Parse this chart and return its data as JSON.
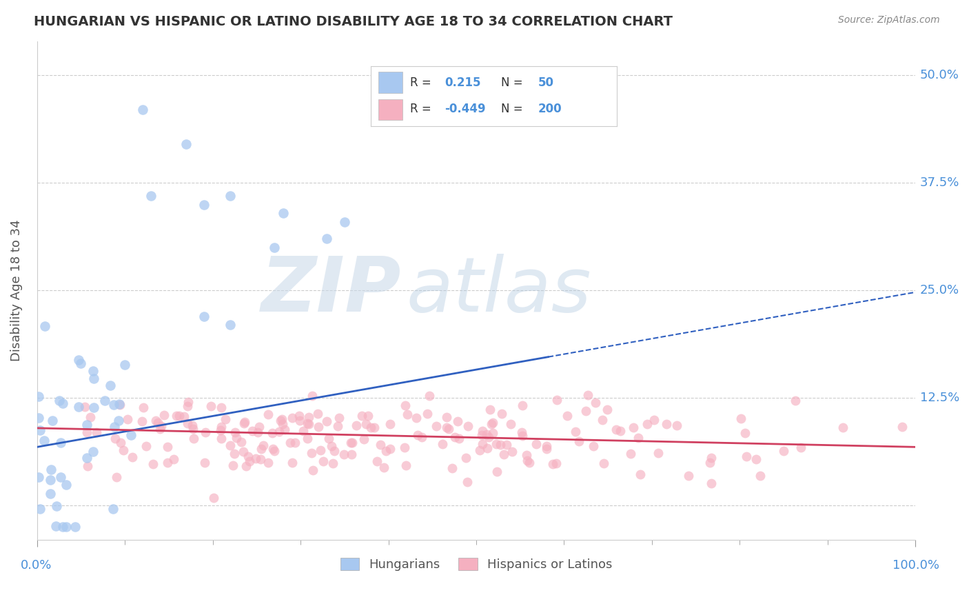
{
  "title": "HUNGARIAN VS HISPANIC OR LATINO DISABILITY AGE 18 TO 34 CORRELATION CHART",
  "source": "Source: ZipAtlas.com",
  "ylabel": "Disability Age 18 to 34",
  "xlim": [
    0,
    1.0
  ],
  "ylim": [
    -0.04,
    0.54
  ],
  "yticks": [
    0.0,
    0.125,
    0.25,
    0.375,
    0.5
  ],
  "ytick_labels": [
    "",
    "12.5%",
    "25.0%",
    "37.5%",
    "50.0%"
  ],
  "blue_color": "#a8c8f0",
  "pink_color": "#f5b0c0",
  "blue_line_color": "#3060c0",
  "pink_line_color": "#d04060",
  "blue_R": 0.215,
  "blue_N": 50,
  "pink_R": -0.449,
  "pink_N": 200,
  "watermark_zip": "ZIP",
  "watermark_atlas": "atlas",
  "background_color": "#ffffff",
  "grid_color": "#cccccc",
  "title_color": "#333333",
  "label_color": "#555555",
  "axis_label_color": "#4a90d9",
  "legend_label1": "Hungarians",
  "legend_label2": "Hispanics or Latinos",
  "blue_line_intercept": 0.068,
  "blue_line_slope": 0.18,
  "pink_line_intercept": 0.09,
  "pink_line_slope": -0.022
}
